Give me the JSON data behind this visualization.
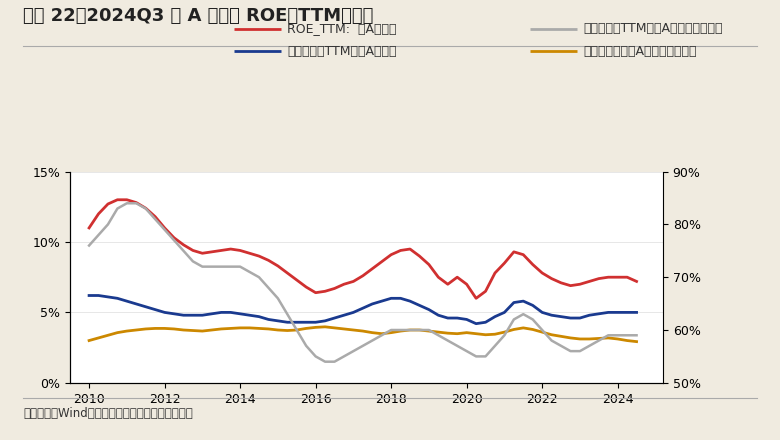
{
  "title": "图表 22、2024Q3 全 A 非金融 ROE（TTM）回落",
  "source_text": "资料来源：Wind，兴业证券经济与金融研究院整理",
  "legend": [
    "ROE_TTM:  全A非金融",
    "销售净利率TTM：全A非金融",
    "资产周转率TTM：全A非金融（右轴）",
    "资产负债率：全A非金融（右轴）"
  ],
  "legend_colors": [
    "#d03030",
    "#1a3a8f",
    "#aaaaaa",
    "#cc8800"
  ],
  "left_ylim": [
    0,
    15
  ],
  "left_yticks": [
    0,
    5,
    10,
    15
  ],
  "left_yticklabels": [
    "0%",
    "5%",
    "10%",
    "15%"
  ],
  "right_ylim": [
    50,
    90
  ],
  "right_yticks": [
    50,
    60,
    70,
    80,
    90
  ],
  "right_yticklabels": [
    "50%",
    "60%",
    "70%",
    "80%",
    "90%"
  ],
  "xlim": [
    2009.5,
    2025.2
  ],
  "xticks": [
    2010,
    2012,
    2014,
    2016,
    2018,
    2020,
    2022,
    2024
  ],
  "roe_ttm_x": [
    2010.0,
    2010.25,
    2010.5,
    2010.75,
    2011.0,
    2011.25,
    2011.5,
    2011.75,
    2012.0,
    2012.25,
    2012.5,
    2012.75,
    2013.0,
    2013.25,
    2013.5,
    2013.75,
    2014.0,
    2014.25,
    2014.5,
    2014.75,
    2015.0,
    2015.25,
    2015.5,
    2015.75,
    2016.0,
    2016.25,
    2016.5,
    2016.75,
    2017.0,
    2017.25,
    2017.5,
    2017.75,
    2018.0,
    2018.25,
    2018.5,
    2018.75,
    2019.0,
    2019.25,
    2019.5,
    2019.75,
    2020.0,
    2020.25,
    2020.5,
    2020.75,
    2021.0,
    2021.25,
    2021.5,
    2021.75,
    2022.0,
    2022.25,
    2022.5,
    2022.75,
    2023.0,
    2023.25,
    2023.5,
    2023.75,
    2024.0,
    2024.25,
    2024.5
  ],
  "roe_ttm_y": [
    11.0,
    12.0,
    12.7,
    13.0,
    13.0,
    12.8,
    12.4,
    11.8,
    11.0,
    10.3,
    9.8,
    9.4,
    9.2,
    9.3,
    9.4,
    9.5,
    9.4,
    9.2,
    9.0,
    8.7,
    8.3,
    7.8,
    7.3,
    6.8,
    6.4,
    6.5,
    6.7,
    7.0,
    7.2,
    7.6,
    8.1,
    8.6,
    9.1,
    9.4,
    9.5,
    9.0,
    8.4,
    7.5,
    7.0,
    7.5,
    7.0,
    6.0,
    6.5,
    7.8,
    8.5,
    9.3,
    9.1,
    8.4,
    7.8,
    7.4,
    7.1,
    6.9,
    7.0,
    7.2,
    7.4,
    7.5,
    7.5,
    7.5,
    7.2
  ],
  "net_margin_x": [
    2010.0,
    2010.25,
    2010.5,
    2010.75,
    2011.0,
    2011.25,
    2011.5,
    2011.75,
    2012.0,
    2012.25,
    2012.5,
    2012.75,
    2013.0,
    2013.25,
    2013.5,
    2013.75,
    2014.0,
    2014.25,
    2014.5,
    2014.75,
    2015.0,
    2015.25,
    2015.5,
    2015.75,
    2016.0,
    2016.25,
    2016.5,
    2016.75,
    2017.0,
    2017.25,
    2017.5,
    2017.75,
    2018.0,
    2018.25,
    2018.5,
    2018.75,
    2019.0,
    2019.25,
    2019.5,
    2019.75,
    2020.0,
    2020.25,
    2020.5,
    2020.75,
    2021.0,
    2021.25,
    2021.5,
    2021.75,
    2022.0,
    2022.25,
    2022.5,
    2022.75,
    2023.0,
    2023.25,
    2023.5,
    2023.75,
    2024.0,
    2024.25,
    2024.5
  ],
  "net_margin_y": [
    6.2,
    6.2,
    6.1,
    6.0,
    5.8,
    5.6,
    5.4,
    5.2,
    5.0,
    4.9,
    4.8,
    4.8,
    4.8,
    4.9,
    5.0,
    5.0,
    4.9,
    4.8,
    4.7,
    4.5,
    4.4,
    4.3,
    4.3,
    4.3,
    4.3,
    4.4,
    4.6,
    4.8,
    5.0,
    5.3,
    5.6,
    5.8,
    6.0,
    6.0,
    5.8,
    5.5,
    5.2,
    4.8,
    4.6,
    4.6,
    4.5,
    4.2,
    4.3,
    4.7,
    5.0,
    5.7,
    5.8,
    5.5,
    5.0,
    4.8,
    4.7,
    4.6,
    4.6,
    4.8,
    4.9,
    5.0,
    5.0,
    5.0,
    5.0
  ],
  "asset_turnover_x": [
    2010.0,
    2010.25,
    2010.5,
    2010.75,
    2011.0,
    2011.25,
    2011.5,
    2011.75,
    2012.0,
    2012.25,
    2012.5,
    2012.75,
    2013.0,
    2013.25,
    2013.5,
    2013.75,
    2014.0,
    2014.25,
    2014.5,
    2014.75,
    2015.0,
    2015.25,
    2015.5,
    2015.75,
    2016.0,
    2016.25,
    2016.5,
    2016.75,
    2017.0,
    2017.25,
    2017.5,
    2017.75,
    2018.0,
    2018.25,
    2018.5,
    2018.75,
    2019.0,
    2019.25,
    2019.5,
    2019.75,
    2020.0,
    2020.25,
    2020.5,
    2020.75,
    2021.0,
    2021.25,
    2021.5,
    2021.75,
    2022.0,
    2022.25,
    2022.5,
    2022.75,
    2023.0,
    2023.25,
    2023.5,
    2023.75,
    2024.0,
    2024.25,
    2024.5
  ],
  "asset_turnover_y": [
    76,
    78,
    80,
    83,
    84,
    84,
    83,
    81,
    79,
    77,
    75,
    73,
    72,
    72,
    72,
    72,
    72,
    71,
    70,
    68,
    66,
    63,
    60,
    57,
    55,
    54,
    54,
    55,
    56,
    57,
    58,
    59,
    60,
    60,
    60,
    60,
    60,
    59,
    58,
    57,
    56,
    55,
    55,
    57,
    59,
    62,
    63,
    62,
    60,
    58,
    57,
    56,
    56,
    57,
    58,
    59,
    59,
    59,
    59
  ],
  "asset_liability_x": [
    2010.0,
    2010.25,
    2010.5,
    2010.75,
    2011.0,
    2011.25,
    2011.5,
    2011.75,
    2012.0,
    2012.25,
    2012.5,
    2012.75,
    2013.0,
    2013.25,
    2013.5,
    2013.75,
    2014.0,
    2014.25,
    2014.5,
    2014.75,
    2015.0,
    2015.25,
    2015.5,
    2015.75,
    2016.0,
    2016.25,
    2016.5,
    2016.75,
    2017.0,
    2017.25,
    2017.5,
    2017.75,
    2018.0,
    2018.25,
    2018.5,
    2018.75,
    2019.0,
    2019.25,
    2019.5,
    2019.75,
    2020.0,
    2020.25,
    2020.5,
    2020.75,
    2021.0,
    2021.25,
    2021.5,
    2021.75,
    2022.0,
    2022.25,
    2022.5,
    2022.75,
    2023.0,
    2023.25,
    2023.5,
    2023.75,
    2024.0,
    2024.25,
    2024.5
  ],
  "asset_liability_y": [
    58.0,
    58.5,
    59.0,
    59.5,
    59.8,
    60.0,
    60.2,
    60.3,
    60.3,
    60.2,
    60.0,
    59.9,
    59.8,
    60.0,
    60.2,
    60.3,
    60.4,
    60.4,
    60.3,
    60.2,
    60.0,
    59.9,
    60.0,
    60.3,
    60.5,
    60.6,
    60.4,
    60.2,
    60.0,
    59.8,
    59.5,
    59.3,
    59.5,
    59.8,
    60.0,
    60.0,
    59.8,
    59.6,
    59.4,
    59.3,
    59.5,
    59.3,
    59.1,
    59.2,
    59.6,
    60.1,
    60.4,
    60.1,
    59.6,
    59.1,
    58.8,
    58.5,
    58.3,
    58.3,
    58.4,
    58.5,
    58.3,
    58.0,
    57.8
  ],
  "bg_color": "#f0ebe0",
  "plot_bg_color": "#ffffff",
  "title_color": "#222222",
  "source_color": "#333333",
  "title_fontsize": 13,
  "legend_fontsize": 9,
  "tick_fontsize": 9
}
